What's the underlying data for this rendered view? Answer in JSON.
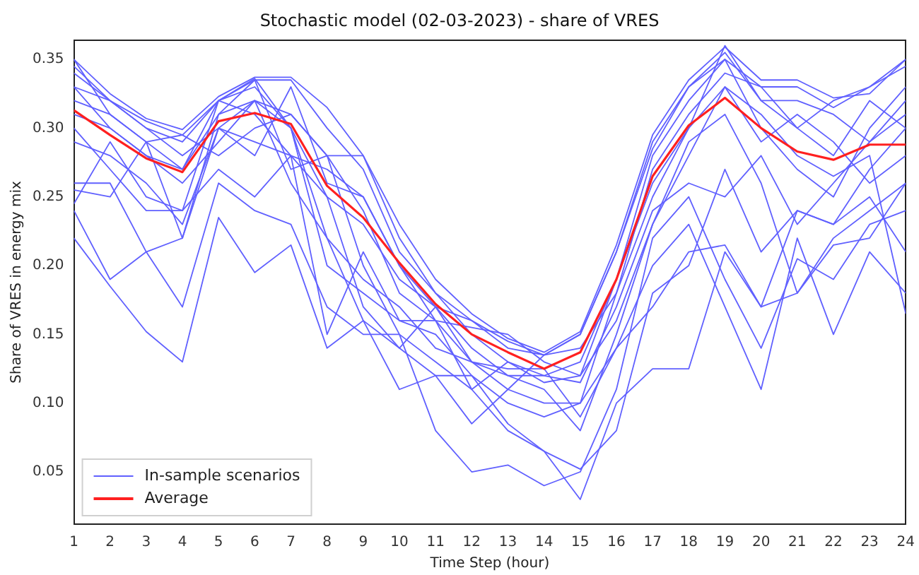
{
  "chart_data": {
    "type": "line",
    "title": "Stochastic model (02-03-2023) - share of VRES",
    "xlabel": "Time Step (hour)",
    "ylabel": "Share of VRES in energy mix",
    "x": [
      1,
      2,
      3,
      4,
      5,
      6,
      7,
      8,
      9,
      10,
      11,
      12,
      13,
      14,
      15,
      16,
      17,
      18,
      19,
      20,
      21,
      22,
      23,
      24
    ],
    "xlim": [
      1,
      24
    ],
    "xticks": [
      1,
      2,
      3,
      4,
      5,
      6,
      7,
      8,
      9,
      10,
      11,
      12,
      13,
      14,
      15,
      16,
      17,
      18,
      19,
      20,
      21,
      22,
      23,
      24
    ],
    "ylim": [
      0.012,
      0.364
    ],
    "yticks": [
      0.05,
      {
        "value": 0.1,
        "label": "0.10"
      },
      0.15,
      {
        "value": 0.2,
        "label": "0.20"
      },
      0.25,
      {
        "value": 0.3,
        "label": "0.30"
      },
      0.35
    ],
    "grid": false,
    "legend": "bottom left",
    "marker": "none",
    "line_style": "solid",
    "series": [
      {
        "name": "In-sample scenarios",
        "color": "#6060ff",
        "values": [
          0.35,
          0.325,
          0.307,
          0.299,
          0.323,
          0.337,
          0.337,
          0.315,
          0.28,
          0.23,
          0.19,
          0.165,
          0.147,
          0.137,
          0.152,
          0.215,
          0.295,
          0.335,
          0.359,
          0.335,
          0.335,
          0.322,
          0.325,
          0.35
        ]
      },
      {
        "color": "#6060ff",
        "values": [
          0.34,
          0.32,
          0.3,
          0.29,
          0.32,
          0.336,
          0.3,
          0.25,
          0.23,
          0.19,
          0.17,
          0.16,
          0.14,
          0.135,
          0.15,
          0.21,
          0.29,
          0.33,
          0.355,
          0.32,
          0.3,
          0.32,
          0.33,
          0.35
        ]
      },
      {
        "color": "#6060ff",
        "values": [
          0.33,
          0.3,
          0.28,
          0.27,
          0.31,
          0.32,
          0.31,
          0.28,
          0.28,
          0.22,
          0.18,
          0.15,
          0.13,
          0.12,
          0.13,
          0.19,
          0.28,
          0.32,
          0.35,
          0.3,
          0.27,
          0.25,
          0.3,
          0.33
        ]
      },
      {
        "color": "#6060ff",
        "values": [
          0.245,
          0.29,
          0.25,
          0.24,
          0.32,
          0.33,
          0.3,
          0.2,
          0.18,
          0.16,
          0.15,
          0.12,
          0.1,
          0.09,
          0.1,
          0.18,
          0.27,
          0.31,
          0.34,
          0.33,
          0.3,
          0.28,
          0.32,
          0.3
        ]
      },
      {
        "color": "#6060ff",
        "values": [
          0.26,
          0.26,
          0.21,
          0.22,
          0.3,
          0.32,
          0.3,
          0.22,
          0.16,
          0.14,
          0.12,
          0.085,
          0.11,
          0.135,
          0.14,
          0.18,
          0.25,
          0.3,
          0.33,
          0.29,
          0.31,
          0.29,
          0.26,
          0.28
        ]
      },
      {
        "color": "#6060ff",
        "values": [
          0.22,
          0.185,
          0.152,
          0.13,
          0.235,
          0.195,
          0.215,
          0.14,
          0.16,
          0.11,
          0.12,
          0.12,
          0.085,
          0.065,
          0.03,
          0.1,
          0.125,
          0.125,
          0.21,
          0.17,
          0.18,
          0.22,
          0.24,
          0.26
        ]
      },
      {
        "color": "#6060ff",
        "values": [
          0.24,
          0.19,
          0.21,
          0.17,
          0.26,
          0.24,
          0.23,
          0.17,
          0.15,
          0.15,
          0.08,
          0.05,
          0.055,
          0.04,
          0.05,
          0.11,
          0.22,
          0.25,
          0.19,
          0.14,
          0.205,
          0.19,
          0.23,
          0.24
        ]
      },
      {
        "color": "#6060ff",
        "values": [
          0.33,
          0.32,
          0.3,
          0.28,
          0.3,
          0.29,
          0.28,
          0.27,
          0.25,
          0.2,
          0.16,
          0.13,
          0.11,
          0.1,
          0.1,
          0.14,
          0.17,
          0.21,
          0.215,
          0.17,
          0.24,
          0.23,
          0.27,
          0.3
        ]
      },
      {
        "color": "#6060ff",
        "values": [
          0.31,
          0.3,
          0.28,
          0.26,
          0.29,
          0.32,
          0.26,
          0.22,
          0.19,
          0.17,
          0.14,
          0.13,
          0.12,
          0.12,
          0.115,
          0.17,
          0.24,
          0.26,
          0.25,
          0.28,
          0.23,
          0.26,
          0.29,
          0.32
        ]
      },
      {
        "color": "#6060ff",
        "values": [
          0.35,
          0.31,
          0.29,
          0.295,
          0.28,
          0.3,
          0.31,
          0.28,
          0.24,
          0.18,
          0.16,
          0.155,
          0.15,
          0.13,
          0.12,
          0.16,
          0.23,
          0.28,
          0.33,
          0.31,
          0.28,
          0.265,
          0.28,
          0.165
        ]
      },
      {
        "color": "#6060ff",
        "values": [
          0.29,
          0.28,
          0.26,
          0.23,
          0.3,
          0.28,
          0.33,
          0.26,
          0.25,
          0.2,
          0.17,
          0.14,
          0.12,
          0.11,
          0.08,
          0.15,
          0.23,
          0.29,
          0.31,
          0.26,
          0.18,
          0.215,
          0.22,
          0.26
        ]
      },
      {
        "color": "#6060ff",
        "values": [
          0.255,
          0.25,
          0.29,
          0.22,
          0.31,
          0.335,
          0.27,
          0.28,
          0.2,
          0.15,
          0.13,
          0.11,
          0.13,
          0.115,
          0.12,
          0.19,
          0.26,
          0.3,
          0.36,
          0.32,
          0.32,
          0.31,
          0.29,
          0.31
        ]
      },
      {
        "color": "#6060ff",
        "values": [
          0.3,
          0.27,
          0.24,
          0.24,
          0.27,
          0.25,
          0.28,
          0.25,
          0.17,
          0.14,
          0.17,
          0.13,
          0.125,
          0.125,
          0.09,
          0.14,
          0.2,
          0.23,
          0.17,
          0.11,
          0.22,
          0.15,
          0.21,
          0.18
        ]
      },
      {
        "color": "#6060ff",
        "values": [
          0.32,
          0.31,
          0.29,
          0.27,
          0.32,
          0.31,
          0.28,
          0.15,
          0.21,
          0.16,
          0.16,
          0.11,
          0.08,
          0.065,
          0.052,
          0.08,
          0.18,
          0.2,
          0.27,
          0.21,
          0.24,
          0.23,
          0.25,
          0.21
        ]
      },
      {
        "color": "#6060ff",
        "values": [
          0.345,
          0.32,
          0.305,
          0.295,
          0.32,
          0.335,
          0.335,
          0.3,
          0.27,
          0.21,
          0.18,
          0.16,
          0.145,
          0.135,
          0.15,
          0.21,
          0.285,
          0.33,
          0.35,
          0.33,
          0.33,
          0.315,
          0.33,
          0.345
        ]
      },
      {
        "name": "Average",
        "color": "#ff2020",
        "values": [
          0.313,
          0.295,
          0.278,
          0.268,
          0.305,
          0.311,
          0.303,
          0.258,
          0.235,
          0.202,
          0.172,
          0.15,
          0.137,
          0.125,
          0.137,
          0.19,
          0.265,
          0.302,
          0.322,
          0.3,
          0.283,
          0.277,
          0.288,
          0.288
        ]
      }
    ]
  }
}
